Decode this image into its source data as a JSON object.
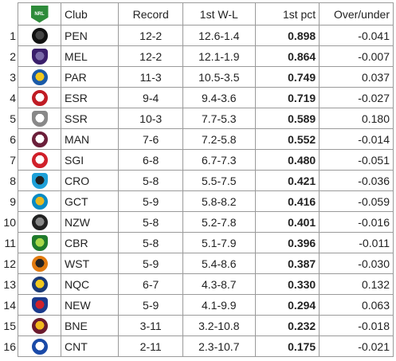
{
  "header": {
    "logo_text": "NRL",
    "club": "Club",
    "record": "Record",
    "first_wl": "1st W-L",
    "first_pct": "1st pct",
    "over_under": "Over/under"
  },
  "rows": [
    {
      "rank": "1",
      "club": "PEN",
      "record": "12-2",
      "wl": "12.6-1.4",
      "pct": "0.898",
      "ou": "-0.041",
      "icon": "panther-icon",
      "color": "#111111",
      "fill": "#444444"
    },
    {
      "rank": "2",
      "club": "MEL",
      "record": "12-2",
      "wl": "12.1-1.9",
      "pct": "0.864",
      "ou": "-0.007",
      "icon": "storm-icon",
      "color": "#3a1f6b",
      "fill": "#7a6aa8"
    },
    {
      "rank": "3",
      "club": "PAR",
      "record": "11-3",
      "wl": "10.5-3.5",
      "pct": "0.749",
      "ou": "0.037",
      "icon": "eel-icon",
      "color": "#1a5aa8",
      "fill": "#f2c81e"
    },
    {
      "rank": "4",
      "club": "ESR",
      "record": "9-4",
      "wl": "9.4-3.6",
      "pct": "0.719",
      "ou": "-0.027",
      "icon": "rooster-icon",
      "color": "#c01c24",
      "fill": "#ffffff"
    },
    {
      "rank": "5",
      "club": "SSR",
      "record": "10-3",
      "wl": "7.7-5.3",
      "pct": "0.589",
      "ou": "0.180",
      "icon": "rabbit-icon",
      "color": "#888888",
      "fill": "#ffffff"
    },
    {
      "rank": "6",
      "club": "MAN",
      "record": "7-6",
      "wl": "7.2-5.8",
      "pct": "0.552",
      "ou": "-0.014",
      "icon": "sea-eagle-icon",
      "color": "#6b1f3a",
      "fill": "#ffffff"
    },
    {
      "rank": "7",
      "club": "SGI",
      "record": "6-8",
      "wl": "6.7-7.3",
      "pct": "0.480",
      "ou": "-0.051",
      "icon": "dragon-icon",
      "color": "#d0202a",
      "fill": "#ffffff"
    },
    {
      "rank": "8",
      "club": "CRO",
      "record": "5-8",
      "wl": "5.5-7.5",
      "pct": "0.421",
      "ou": "-0.036",
      "icon": "shark-icon",
      "color": "#1ea0d8",
      "fill": "#222222"
    },
    {
      "rank": "9",
      "club": "GCT",
      "record": "5-9",
      "wl": "5.8-8.2",
      "pct": "0.416",
      "ou": "-0.059",
      "icon": "titan-icon",
      "color": "#0a8bc4",
      "fill": "#e8b820"
    },
    {
      "rank": "10",
      "club": "NZW",
      "record": "5-8",
      "wl": "5.2-7.8",
      "pct": "0.401",
      "ou": "-0.016",
      "icon": "warrior-icon",
      "color": "#222222",
      "fill": "#888888"
    },
    {
      "rank": "11",
      "club": "CBR",
      "record": "5-8",
      "wl": "5.1-7.9",
      "pct": "0.396",
      "ou": "-0.011",
      "icon": "raider-icon",
      "color": "#1f7a2c",
      "fill": "#a8d84a"
    },
    {
      "rank": "12",
      "club": "WST",
      "record": "5-9",
      "wl": "5.4-8.6",
      "pct": "0.387",
      "ou": "-0.030",
      "icon": "tiger-icon",
      "color": "#e07a10",
      "fill": "#222222"
    },
    {
      "rank": "13",
      "club": "NQC",
      "record": "6-7",
      "wl": "4.3-8.7",
      "pct": "0.330",
      "ou": "0.132",
      "icon": "cowboy-icon",
      "color": "#1a3a78",
      "fill": "#f2c81e"
    },
    {
      "rank": "14",
      "club": "NEW",
      "record": "5-9",
      "wl": "4.1-9.9",
      "pct": "0.294",
      "ou": "0.063",
      "icon": "knight-icon",
      "color": "#1a3a8c",
      "fill": "#d0202a"
    },
    {
      "rank": "15",
      "club": "BNE",
      "record": "3-11",
      "wl": "3.2-10.8",
      "pct": "0.232",
      "ou": "-0.018",
      "icon": "bronco-icon",
      "color": "#6b1a2e",
      "fill": "#f2b81e"
    },
    {
      "rank": "16",
      "club": "CNT",
      "record": "2-11",
      "wl": "2.3-10.7",
      "pct": "0.175",
      "ou": "-0.021",
      "icon": "bulldog-icon",
      "color": "#1a4aa8",
      "fill": "#ffffff"
    }
  ]
}
